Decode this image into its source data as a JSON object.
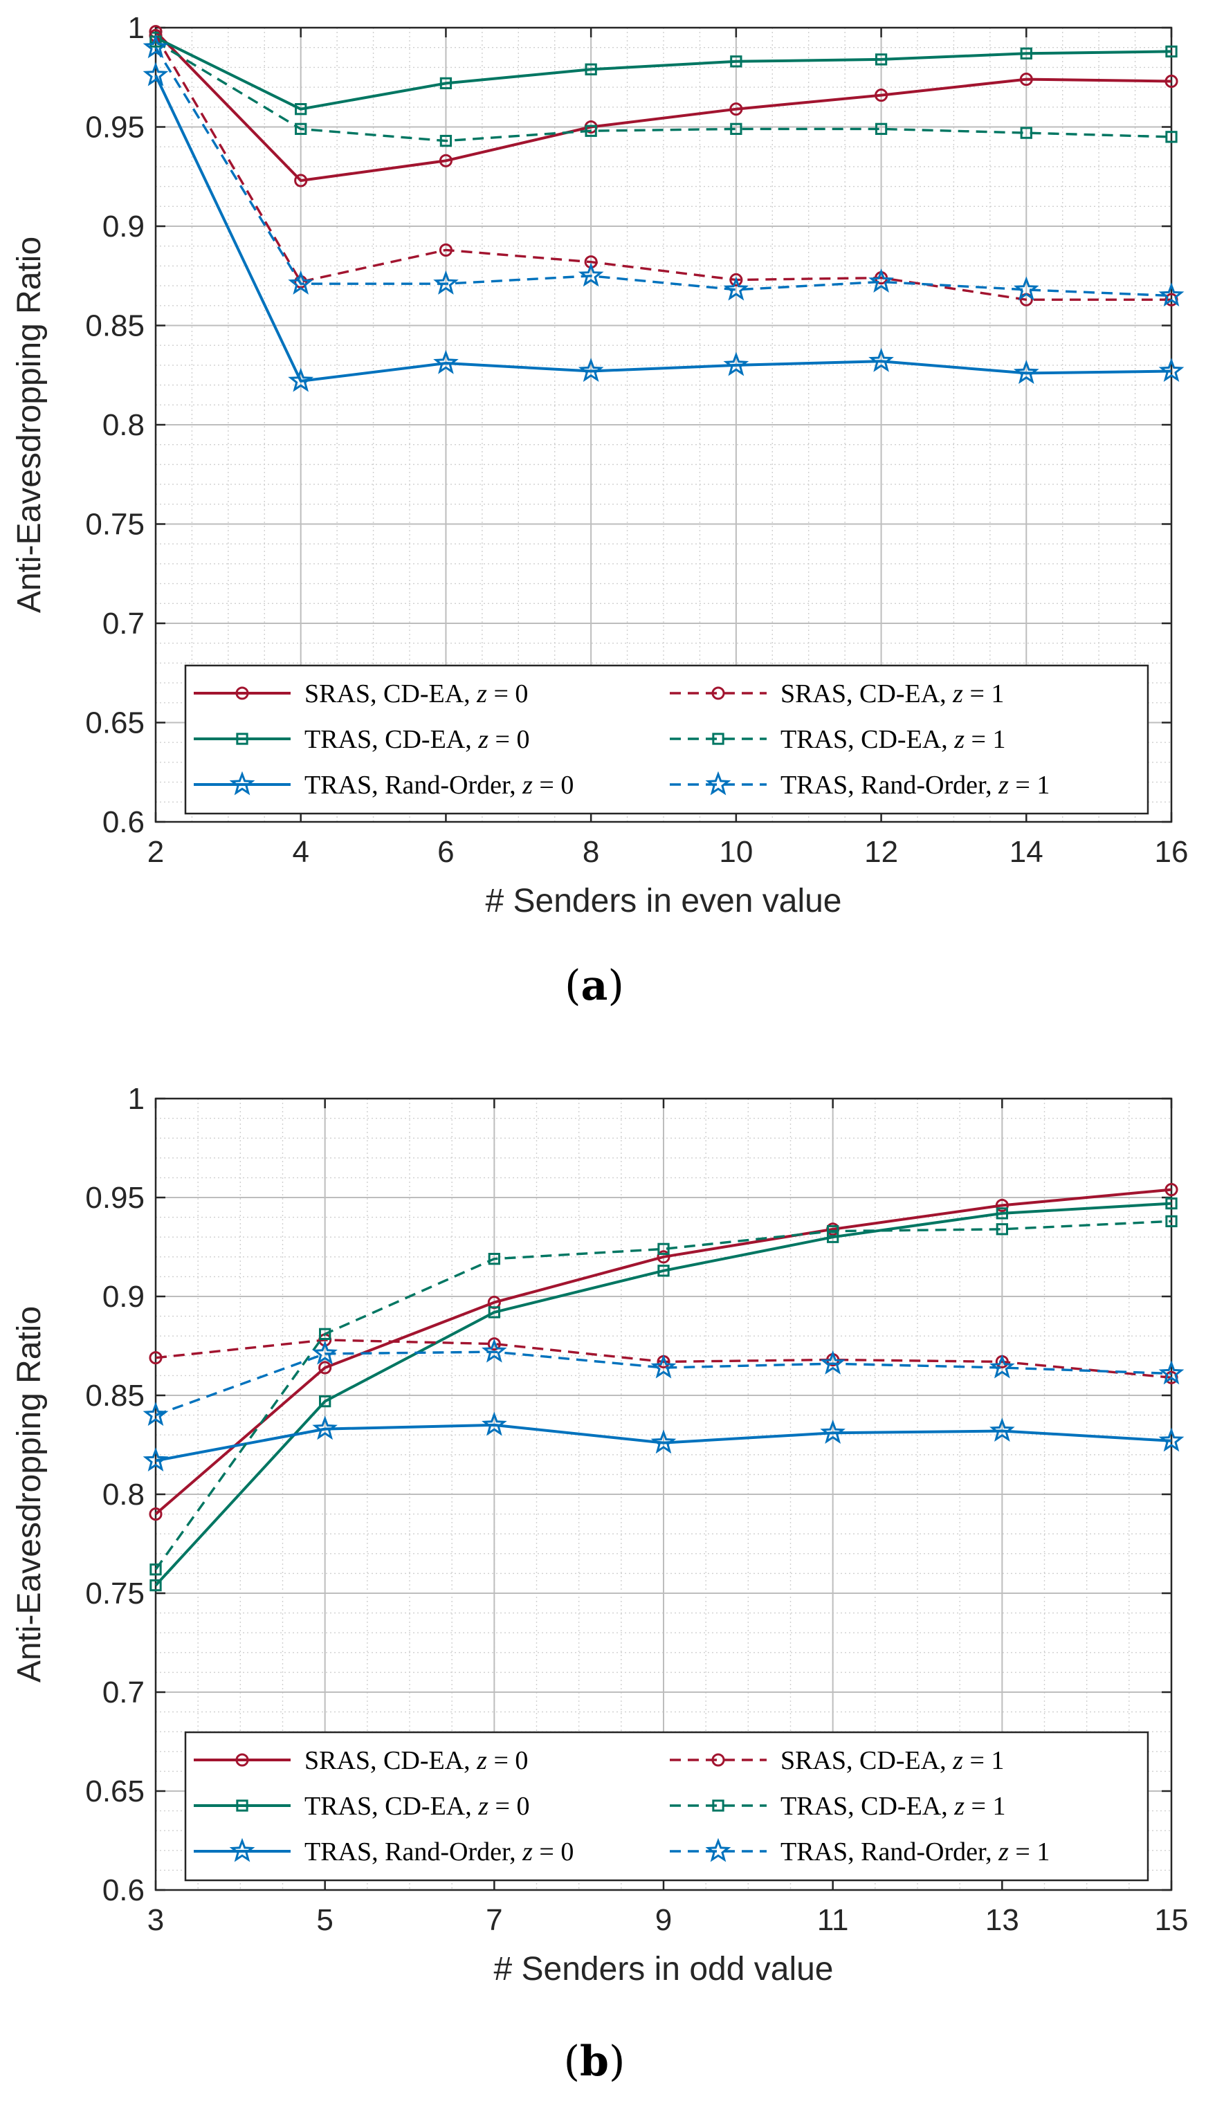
{
  "chart_data": [
    {
      "type": "line",
      "panel": "a",
      "caption": "(a)",
      "caption_letter": "a",
      "xlabel": "# Senders in even value",
      "ylabel": "Anti-Eavesdropping Ratio",
      "xlim": [
        2,
        16
      ],
      "ylim": [
        0.6,
        1.0
      ],
      "xticks": [
        2,
        4,
        6,
        8,
        10,
        12,
        14,
        16
      ],
      "xtick_labels": [
        "2",
        "4",
        "6",
        "8",
        "10",
        "12",
        "14",
        "16"
      ],
      "yticks": [
        0.6,
        0.65,
        0.7,
        0.75,
        0.8,
        0.85,
        0.9,
        0.95,
        1.0
      ],
      "ytick_labels": [
        "0.6",
        "0.65",
        "0.7",
        "0.75",
        "0.8",
        "0.85",
        "0.9",
        "0.95",
        "1"
      ],
      "grid": true,
      "minor_grid": true,
      "legend_position": "bottom",
      "series": [
        {
          "name": "SRAS, CD-EA, z = 0",
          "label": "SRAS, CD-EA, ",
          "math": "z",
          "math_value": " = 0",
          "color": "#a2142f",
          "dash": "solid",
          "marker": "circle",
          "x": [
            2,
            4,
            6,
            8,
            10,
            12,
            14,
            16
          ],
          "values": [
            0.998,
            0.923,
            0.933,
            0.95,
            0.959,
            0.966,
            0.974,
            0.973
          ]
        },
        {
          "name": "TRAS, CD-EA, z = 0",
          "label": "TRAS, CD-EA, ",
          "math": "z",
          "math_value": " = 0",
          "color": "#007662",
          "dash": "solid",
          "marker": "square",
          "x": [
            2,
            4,
            6,
            8,
            10,
            12,
            14,
            16
          ],
          "values": [
            0.995,
            0.959,
            0.972,
            0.979,
            0.983,
            0.984,
            0.987,
            0.988
          ]
        },
        {
          "name": "TRAS, Rand-Order, z = 0",
          "label": "TRAS, Rand-Order, ",
          "math": "z",
          "math_value": " = 0",
          "color": "#0072bd",
          "dash": "solid",
          "marker": "star",
          "x": [
            2,
            4,
            6,
            8,
            10,
            12,
            14,
            16
          ],
          "values": [
            0.976,
            0.822,
            0.831,
            0.827,
            0.83,
            0.832,
            0.826,
            0.827
          ]
        },
        {
          "name": "SRAS, CD-EA, z = 1",
          "label": "SRAS, CD-EA, ",
          "math": "z",
          "math_value": " = 1",
          "color": "#a2142f",
          "dash": "dashed",
          "marker": "circle",
          "x": [
            2,
            4,
            6,
            8,
            10,
            12,
            14,
            16
          ],
          "values": [
            0.996,
            0.872,
            0.888,
            0.882,
            0.873,
            0.874,
            0.863,
            0.863
          ]
        },
        {
          "name": "TRAS, CD-EA, z = 1",
          "label": "TRAS, CD-EA, ",
          "math": "z",
          "math_value": " = 1",
          "color": "#007662",
          "dash": "dashed",
          "marker": "square",
          "x": [
            2,
            4,
            6,
            8,
            10,
            12,
            14,
            16
          ],
          "values": [
            0.993,
            0.949,
            0.943,
            0.948,
            0.949,
            0.949,
            0.947,
            0.945
          ]
        },
        {
          "name": "TRAS, Rand-Order, z = 1",
          "label": "TRAS, Rand-Order, ",
          "math": "z",
          "math_value": " = 1",
          "color": "#0072bd",
          "dash": "dashed",
          "marker": "star",
          "x": [
            2,
            4,
            6,
            8,
            10,
            12,
            14,
            16
          ],
          "values": [
            0.99,
            0.871,
            0.871,
            0.875,
            0.868,
            0.872,
            0.868,
            0.865
          ]
        }
      ]
    },
    {
      "type": "line",
      "panel": "b",
      "caption": "(b)",
      "caption_letter": "b",
      "xlabel": "# Senders in odd value",
      "ylabel": "Anti-Eavesdropping Ratio",
      "xlim": [
        3,
        15
      ],
      "ylim": [
        0.6,
        1.0
      ],
      "xticks": [
        3,
        5,
        7,
        9,
        11,
        13,
        15
      ],
      "xtick_labels": [
        "3",
        "5",
        "7",
        "9",
        "11",
        "13",
        "15"
      ],
      "yticks": [
        0.6,
        0.65,
        0.7,
        0.75,
        0.8,
        0.85,
        0.9,
        0.95,
        1.0
      ],
      "ytick_labels": [
        "0.6",
        "0.65",
        "0.7",
        "0.75",
        "0.8",
        "0.85",
        "0.9",
        "0.95",
        "1"
      ],
      "grid": true,
      "minor_grid": true,
      "legend_position": "bottom",
      "series": [
        {
          "name": "SRAS, CD-EA, z = 0",
          "label": "SRAS, CD-EA, ",
          "math": "z",
          "math_value": " = 0",
          "color": "#a2142f",
          "dash": "solid",
          "marker": "circle",
          "x": [
            3,
            5,
            7,
            9,
            11,
            13,
            15
          ],
          "values": [
            0.79,
            0.864,
            0.897,
            0.92,
            0.934,
            0.946,
            0.954
          ]
        },
        {
          "name": "TRAS, CD-EA, z = 0",
          "label": "TRAS, CD-EA, ",
          "math": "z",
          "math_value": " = 0",
          "color": "#007662",
          "dash": "solid",
          "marker": "square",
          "x": [
            3,
            5,
            7,
            9,
            11,
            13,
            15
          ],
          "values": [
            0.754,
            0.847,
            0.892,
            0.913,
            0.93,
            0.942,
            0.947
          ]
        },
        {
          "name": "TRAS, Rand-Order, z = 0",
          "label": "TRAS, Rand-Order, ",
          "math": "z",
          "math_value": " = 0",
          "color": "#0072bd",
          "dash": "solid",
          "marker": "star",
          "x": [
            3,
            5,
            7,
            9,
            11,
            13,
            15
          ],
          "values": [
            0.817,
            0.833,
            0.835,
            0.826,
            0.831,
            0.832,
            0.827
          ]
        },
        {
          "name": "SRAS, CD-EA, z = 1",
          "label": "SRAS, CD-EA, ",
          "math": "z",
          "math_value": " = 1",
          "color": "#a2142f",
          "dash": "dashed",
          "marker": "circle",
          "x": [
            3,
            5,
            7,
            9,
            11,
            13,
            15
          ],
          "values": [
            0.869,
            0.878,
            0.876,
            0.867,
            0.868,
            0.867,
            0.859
          ]
        },
        {
          "name": "TRAS, CD-EA, z = 1",
          "label": "TRAS, CD-EA, ",
          "math": "z",
          "math_value": " = 1",
          "color": "#007662",
          "dash": "dashed",
          "marker": "square",
          "x": [
            3,
            5,
            7,
            9,
            11,
            13,
            15
          ],
          "values": [
            0.762,
            0.881,
            0.919,
            0.924,
            0.933,
            0.934,
            0.938
          ]
        },
        {
          "name": "TRAS, Rand-Order, z = 1",
          "label": "TRAS, Rand-Order, ",
          "math": "z",
          "math_value": " = 1",
          "color": "#0072bd",
          "dash": "dashed",
          "marker": "star",
          "x": [
            3,
            5,
            7,
            9,
            11,
            13,
            15
          ],
          "values": [
            0.84,
            0.871,
            0.872,
            0.864,
            0.866,
            0.864,
            0.861
          ]
        }
      ]
    }
  ]
}
